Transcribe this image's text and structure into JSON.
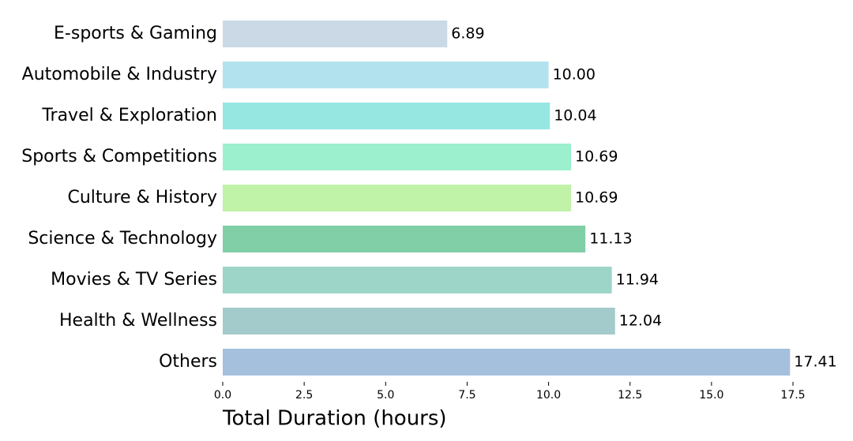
{
  "chart_data": {
    "type": "barh",
    "xlabel": "Total Duration (hours)",
    "categories": [
      "E-sports & Gaming",
      "Automobile & Industry",
      "Travel & Exploration",
      "Sports & Competitions",
      "Culture & History",
      "Science & Technology",
      "Movies & TV Series",
      "Health & Wellness",
      "Others"
    ],
    "values": [
      6.89,
      10.0,
      10.04,
      10.69,
      10.69,
      11.13,
      11.94,
      12.04,
      17.41
    ],
    "value_labels": [
      "6.89",
      "10.00",
      "10.04",
      "10.69",
      "10.69",
      "11.13",
      "11.94",
      "12.04",
      "17.41"
    ],
    "colors": [
      "#cbd9e6",
      "#b2e2ee",
      "#96e6e2",
      "#9cf0cd",
      "#c0f2a8",
      "#80cfa6",
      "#9dd5c8",
      "#a3cbcb",
      "#a5c0dd"
    ],
    "xlim": [
      0,
      17.5
    ],
    "xticks": [
      {
        "value": 0,
        "label": "0.0"
      },
      {
        "value": 2.5,
        "label": "2.5"
      },
      {
        "value": 5,
        "label": "5.0"
      },
      {
        "value": 7.5,
        "label": "7.5"
      },
      {
        "value": 10,
        "label": "10.0"
      },
      {
        "value": 12.5,
        "label": "12.5"
      },
      {
        "value": 15,
        "label": "15.0"
      },
      {
        "value": 17.5,
        "label": "17.5"
      }
    ],
    "grid": false
  }
}
